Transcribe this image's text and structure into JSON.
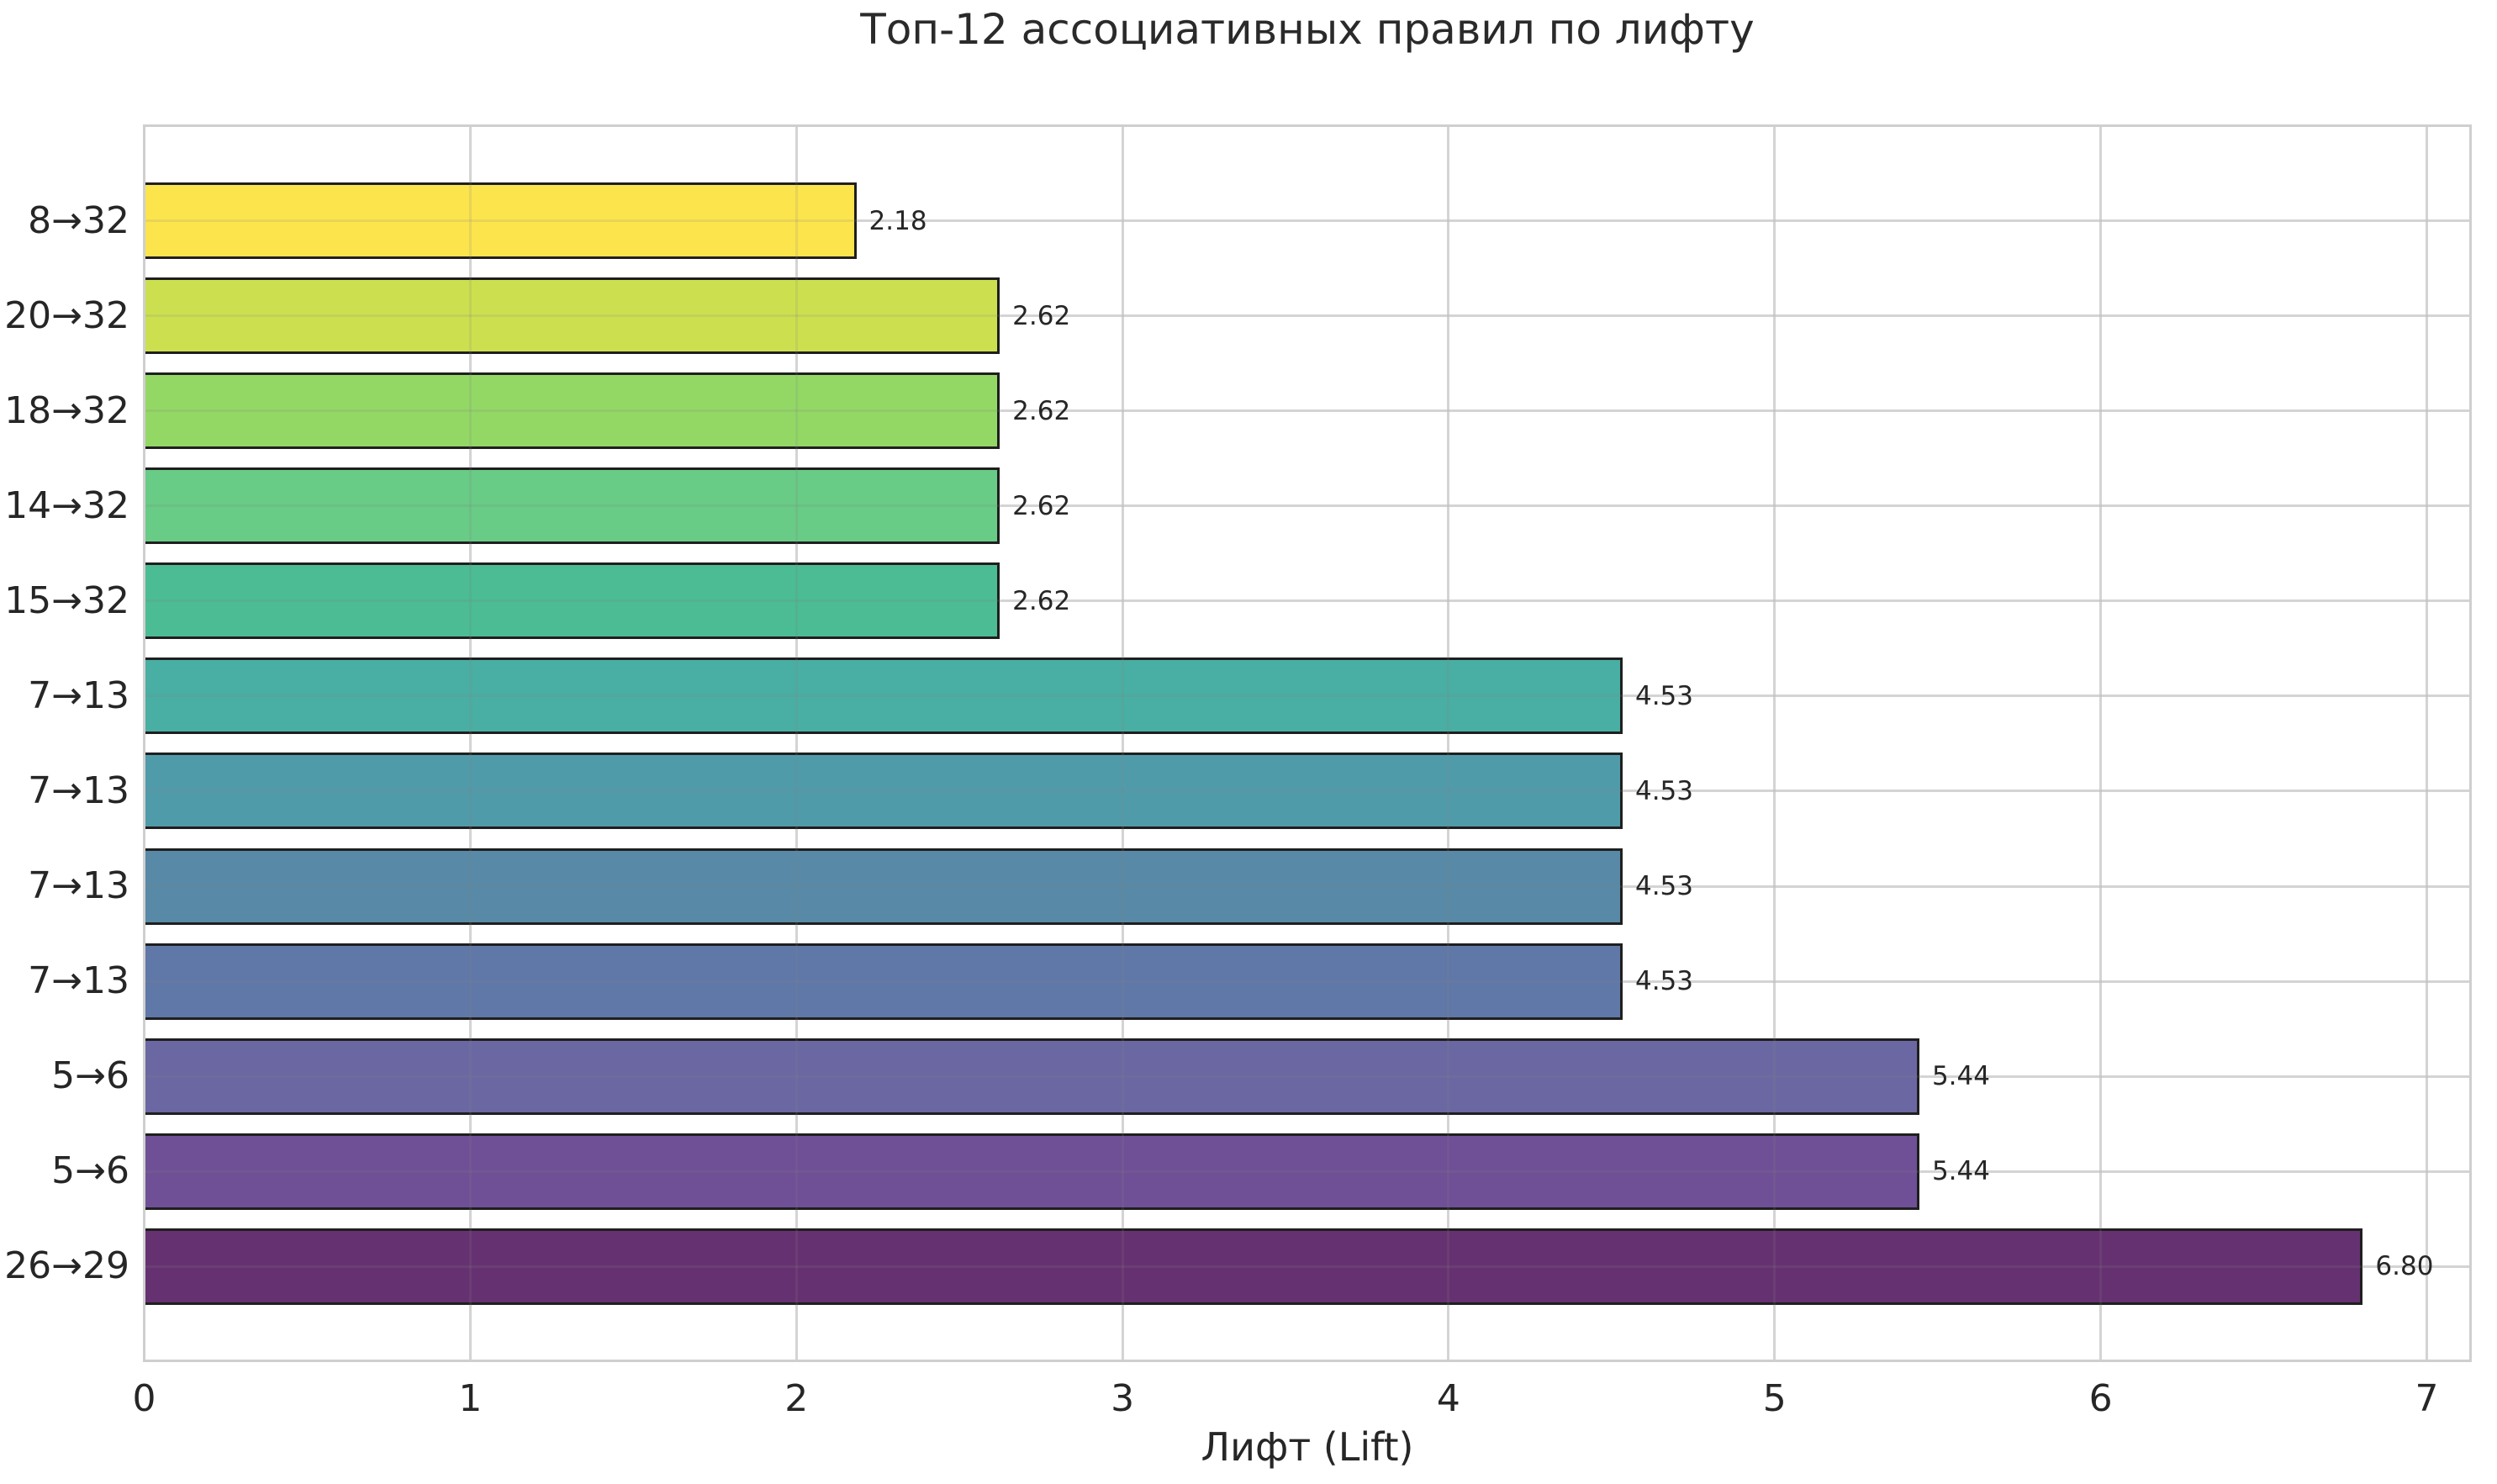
{
  "chart_data": {
    "type": "bar",
    "orientation": "horizontal",
    "title": "Топ-12 ассоциативных правил по лифту",
    "xlabel": "Лифт (Lift)",
    "ylabel": "",
    "categories": [
      "8→32",
      "20→32",
      "18→32",
      "14→32",
      "15→32",
      "7→13",
      "7→13",
      "7→13",
      "7→13",
      "5→6",
      "5→6",
      "26→29"
    ],
    "values": [
      2.18,
      2.62,
      2.62,
      2.62,
      2.62,
      4.53,
      4.53,
      4.53,
      4.53,
      5.44,
      5.44,
      6.8
    ],
    "value_labels": [
      "2.18",
      "2.62",
      "2.62",
      "2.62",
      "2.62",
      "4.53",
      "4.53",
      "4.53",
      "4.53",
      "5.44",
      "5.44",
      "6.80"
    ],
    "bar_colors": [
      "#FCE44D",
      "#CCE04F",
      "#93D865",
      "#68CB86",
      "#4BBC93",
      "#49AEA3",
      "#509BAA",
      "#5889A6",
      "#6078A7",
      "#6A67A2",
      "#6F4F95",
      "#663171"
    ],
    "bar_edge_color": "#1f1f1f",
    "x_ticks": [
      "0",
      "1",
      "2",
      "3",
      "4",
      "5",
      "6",
      "7"
    ],
    "xlim": [
      0,
      7.14
    ],
    "grid": true,
    "grid_color": "#e4e4e4",
    "grid_overlay_color": "rgba(130,130,130,0.16)",
    "axes_edge_color": "#cfcfcf",
    "text_color": "#262626",
    "legend": false
  }
}
